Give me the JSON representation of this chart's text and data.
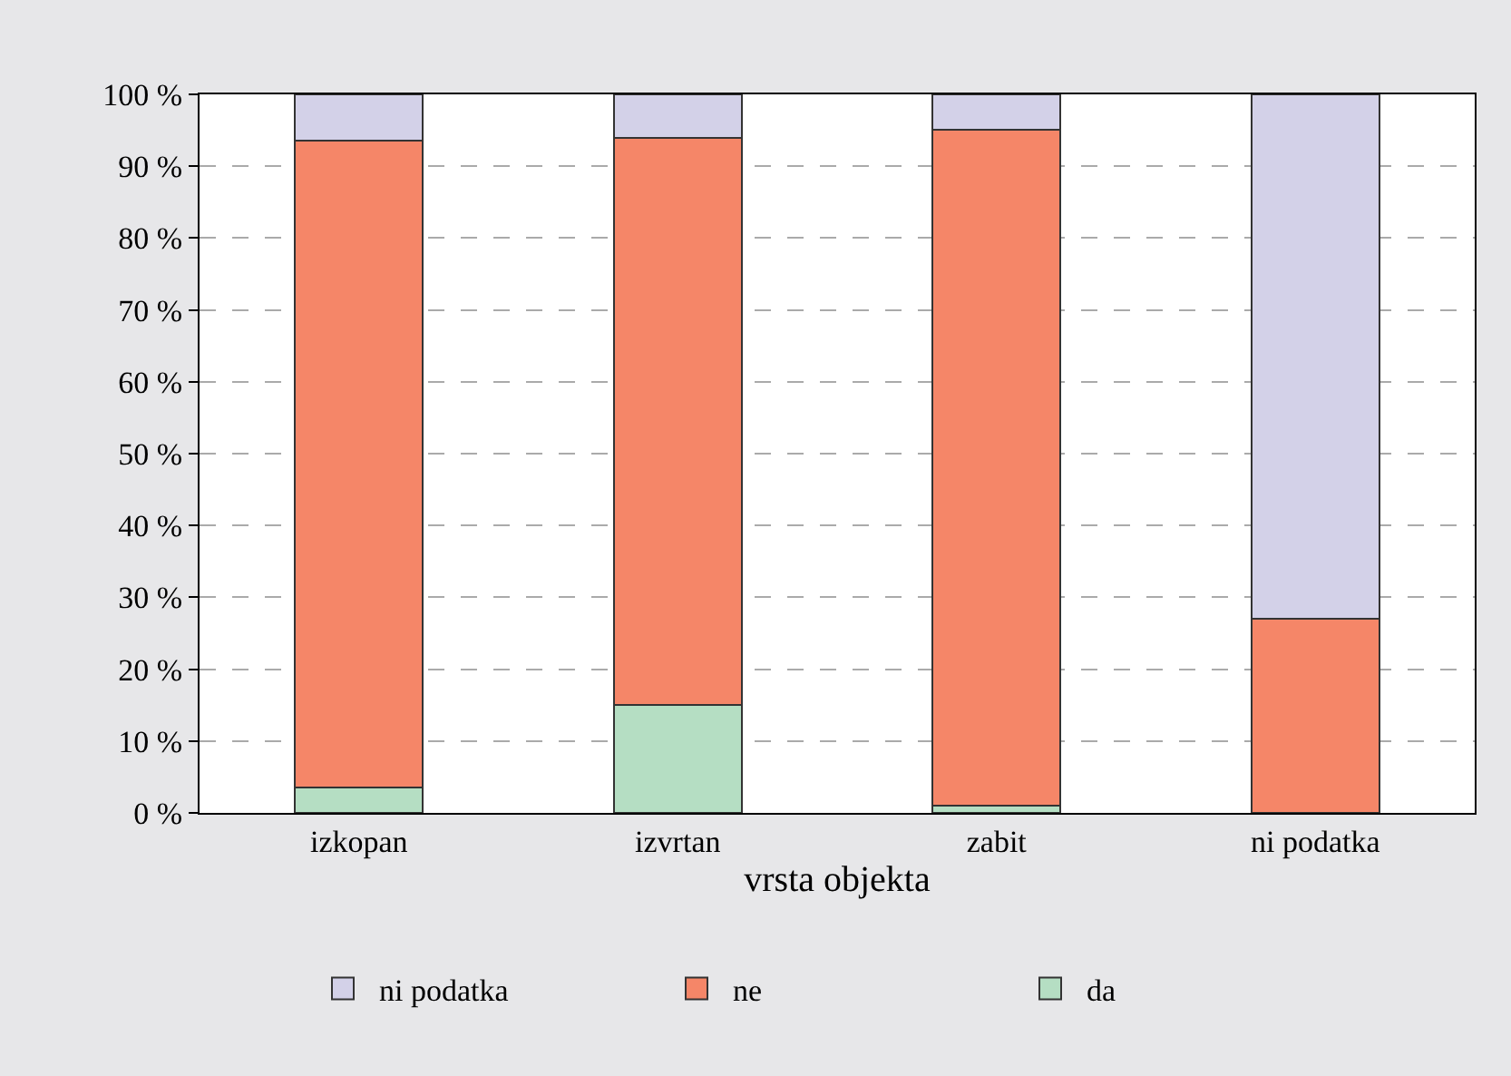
{
  "chart_data": {
    "type": "bar",
    "stacked": true,
    "xlabel": "vrsta objekta",
    "categories": [
      "izkopan",
      "izvrtan",
      "zabit",
      "ni podatka"
    ],
    "series": [
      {
        "name": "da",
        "color": "#b5dec3",
        "values": [
          3.5,
          15,
          1,
          0
        ]
      },
      {
        "name": "ne",
        "color": "#f58668",
        "values": [
          90.1,
          79,
          94.1,
          27
        ]
      },
      {
        "name": "ni podatka",
        "color": "#d3d1e8",
        "values": [
          6.4,
          6,
          4.9,
          73
        ]
      }
    ],
    "ylim": [
      0,
      100
    ],
    "yticks": [
      {
        "value": 0,
        "label": "0 %"
      },
      {
        "value": 10,
        "label": "10 %"
      },
      {
        "value": 20,
        "label": "20 %"
      },
      {
        "value": 30,
        "label": "30 %"
      },
      {
        "value": 40,
        "label": "40 %"
      },
      {
        "value": 50,
        "label": "50 %"
      },
      {
        "value": 60,
        "label": "60 %"
      },
      {
        "value": 70,
        "label": "70 %"
      },
      {
        "value": 80,
        "label": "80 %"
      },
      {
        "value": 90,
        "label": "90 %"
      },
      {
        "value": 100,
        "label": "100 %"
      }
    ],
    "grid": "y",
    "legend": "bottom"
  }
}
